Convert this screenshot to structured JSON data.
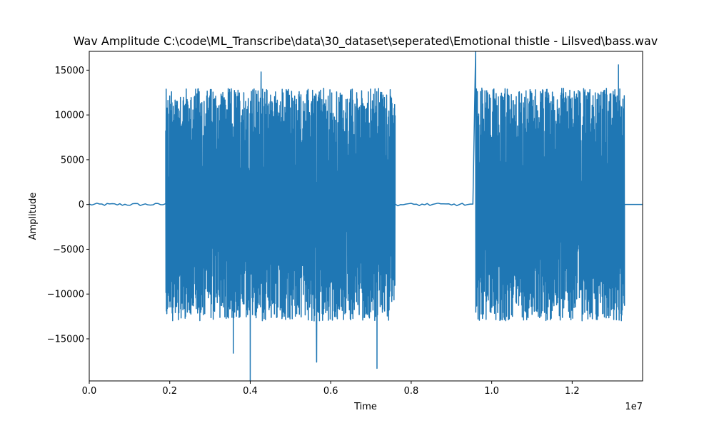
{
  "chart_data": {
    "type": "line",
    "title": "Wav Amplitude C:\\code\\ML_Transcribe\\data\\30_dataset\\seperated\\Emotional thistle - Lilsved\\bass.wav",
    "xlabel": "Time",
    "ylabel": "Amplitude",
    "x_offset_text": "1e7",
    "xlim": [
      0,
      13750000
    ],
    "ylim": [
      -19700,
      17100
    ],
    "xticks": [
      0,
      2000000,
      4000000,
      6000000,
      8000000,
      10000000,
      12000000
    ],
    "xtick_labels": [
      "0.0",
      "0.2",
      "0.4",
      "0.6",
      "0.8",
      "1.0",
      "1.2"
    ],
    "yticks": [
      -15000,
      -10000,
      -5000,
      0,
      5000,
      10000,
      15000
    ],
    "ytick_labels": [
      "−15000",
      "−10000",
      "−5000",
      "0",
      "5000",
      "10000",
      "15000"
    ],
    "grid": false,
    "series": [
      {
        "color": "#1f77b4",
        "segments": [
          {
            "x_start": 0,
            "x_end": 1900000,
            "amplitude": 150
          },
          {
            "x_start": 1900000,
            "x_end": 7600000,
            "amplitude": 13000
          },
          {
            "x_start": 7600000,
            "x_end": 9600000,
            "amplitude": 150
          },
          {
            "x_start": 9600000,
            "x_end": 13300000,
            "amplitude": 13000
          },
          {
            "x_start": 13300000,
            "x_end": 13750000,
            "amplitude": 0
          }
        ],
        "peaks": [
          {
            "x": 4000000,
            "y": -19700
          },
          {
            "x": 9600000,
            "y": 17100
          },
          {
            "x": 7150000,
            "y": -18300
          },
          {
            "x": 5650000,
            "y": -17600
          },
          {
            "x": 3580000,
            "y": -16600
          },
          {
            "x": 13150000,
            "y": 15600
          },
          {
            "x": 4270000,
            "y": 14800
          }
        ]
      }
    ]
  }
}
